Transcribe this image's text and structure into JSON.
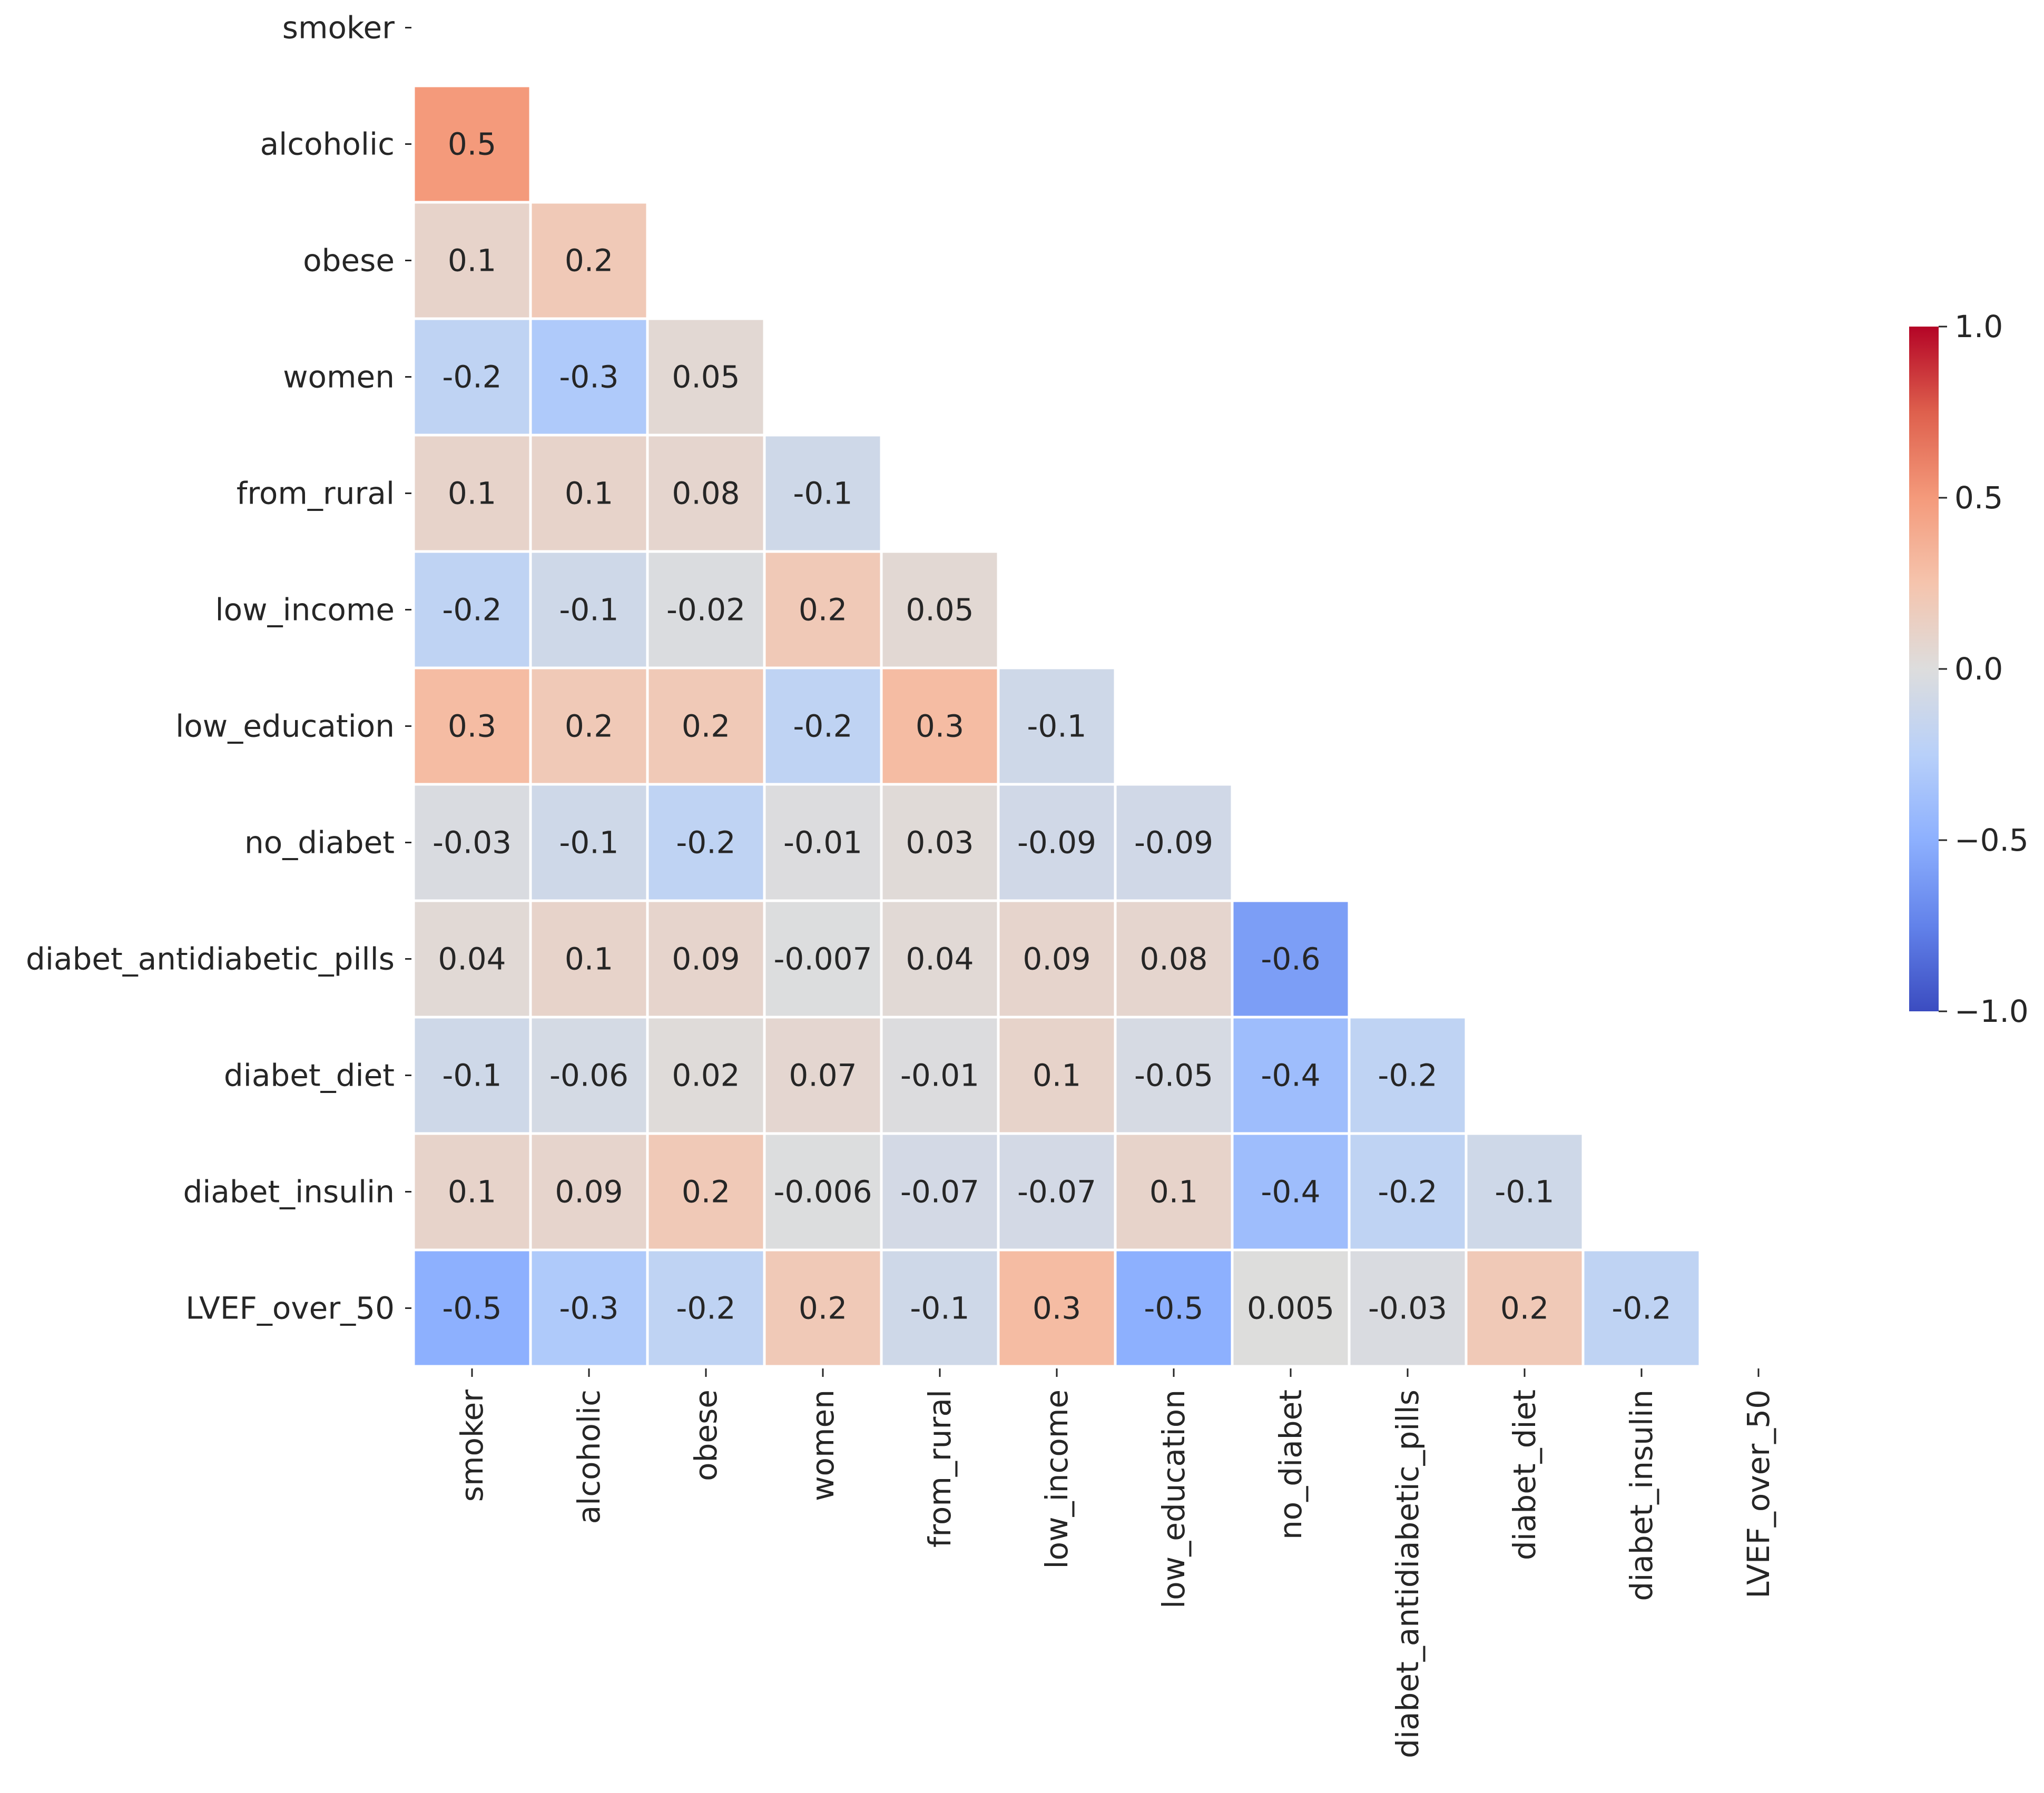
{
  "chart_data": {
    "type": "heatmap",
    "title": "",
    "xlabel": "",
    "ylabel": "",
    "variables": [
      "smoker",
      "alcoholic",
      "obese",
      "women",
      "from_rural",
      "low_income",
      "low_education",
      "no_diabet",
      "diabet_antidiabetic_pills",
      "diabet_diet",
      "diabet_insulin",
      "LVEF_over_50"
    ],
    "mask": "upper-triangle-including-diagonal",
    "lower_triangle": [
      [],
      [
        "0.5"
      ],
      [
        "0.1",
        "0.2"
      ],
      [
        "-0.2",
        "-0.3",
        "0.05"
      ],
      [
        "0.1",
        "0.1",
        "0.08",
        "-0.1"
      ],
      [
        "-0.2",
        "-0.1",
        "-0.02",
        "0.2",
        "0.05"
      ],
      [
        "0.3",
        "0.2",
        "0.2",
        "-0.2",
        "0.3",
        "-0.1"
      ],
      [
        "-0.03",
        "-0.1",
        "-0.2",
        "-0.01",
        "0.03",
        "-0.09",
        "-0.09"
      ],
      [
        "0.04",
        "0.1",
        "0.09",
        "-0.007",
        "0.04",
        "0.09",
        "0.08",
        "-0.6"
      ],
      [
        "-0.1",
        "-0.06",
        "0.02",
        "0.07",
        "-0.01",
        "0.1",
        "-0.05",
        "-0.4",
        "-0.2"
      ],
      [
        "0.1",
        "0.09",
        "0.2",
        "-0.006",
        "-0.07",
        "-0.07",
        "0.1",
        "-0.4",
        "-0.2",
        "-0.1"
      ],
      [
        "-0.5",
        "-0.3",
        "-0.2",
        "0.2",
        "-0.1",
        "0.3",
        "-0.5",
        "0.005",
        "-0.03",
        "0.2",
        "-0.2"
      ]
    ],
    "colormap": "coolwarm",
    "vmin": -1.0,
    "vmax": 1.0,
    "colorbar": {
      "ticks": [
        1.0,
        0.5,
        0.0,
        -0.5,
        -1.0
      ],
      "tick_labels": [
        "1.0",
        "0.5",
        "0.0",
        "−0.5",
        "−1.0"
      ],
      "placement": "right"
    },
    "cell_gap_color": "#ffffff"
  }
}
